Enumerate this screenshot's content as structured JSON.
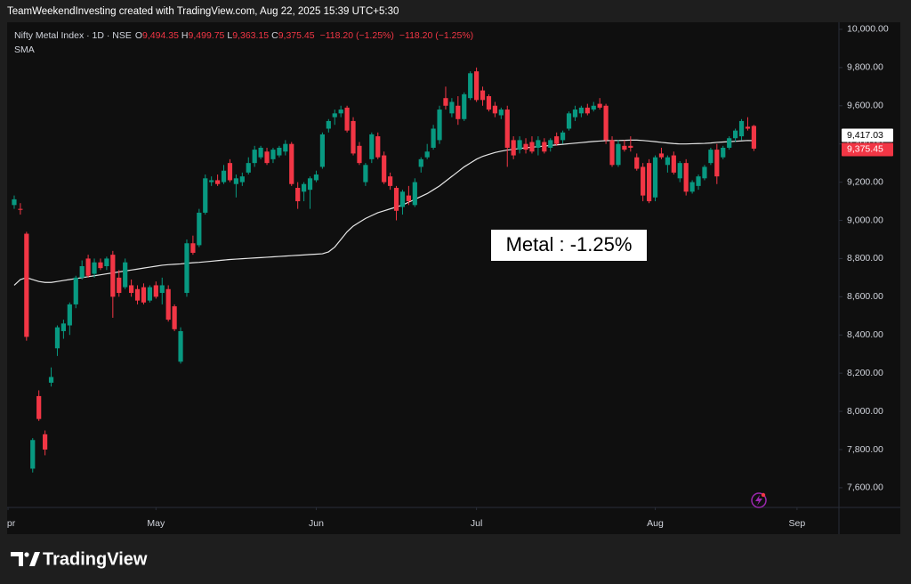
{
  "chart_data": {
    "type": "candlestick",
    "credit": "TeamWeekendInvesting created with TradingView.com, Aug 22, 2025 15:39 UTC+5:30",
    "title": "Nifty Metal Index · 1D · NSE",
    "legend_items": [
      {
        "key": "O",
        "value": "9,494.35"
      },
      {
        "key": "H",
        "value": "9,499.75"
      },
      {
        "key": "L",
        "value": "9,363.15"
      },
      {
        "key": "C",
        "value": "9,375.45"
      }
    ],
    "change_labels": [
      "−118.20 (−1.25%)",
      "−118.20 (−1.25%)"
    ],
    "indicator": "SMA",
    "annotation": "Metal : -1.25%",
    "brand": "TradingView",
    "up_color": "#089981",
    "down_color": "#f23645",
    "sma_color": "#e6e6e6",
    "grid": false,
    "xlim": [
      -1.15,
      133.8
    ],
    "xticks": [
      {
        "value": -1,
        "label": "Apr"
      },
      {
        "value": 23,
        "label": "May"
      },
      {
        "value": 49,
        "label": "Jun"
      },
      {
        "value": 75,
        "label": "Jul"
      },
      {
        "value": 104,
        "label": "Aug"
      },
      {
        "value": 127,
        "label": "Sep"
      }
    ],
    "ylim": [
      7497,
      10037
    ],
    "yticks": [
      {
        "value": 7600,
        "label": "7,600.00"
      },
      {
        "value": 7800,
        "label": "7,800.00"
      },
      {
        "value": 8000,
        "label": "8,000.00"
      },
      {
        "value": 8200,
        "label": "8,200.00"
      },
      {
        "value": 8400,
        "label": "8,400.00"
      },
      {
        "value": 8600,
        "label": "8,600.00"
      },
      {
        "value": 8800,
        "label": "8,800.00"
      },
      {
        "value": 9000,
        "label": "9,000.00"
      },
      {
        "value": 9200,
        "label": "9,200.00"
      },
      {
        "value": 9400,
        "label": "9,400.00"
      },
      {
        "value": 9600,
        "label": "9,600.00"
      },
      {
        "value": 9800,
        "label": "9,800.00"
      },
      {
        "value": 10000,
        "label": "10,000.00"
      }
    ],
    "price_labels": [
      {
        "value": 9417.03,
        "label": "9,417.03"
      },
      {
        "value": 9375.45,
        "label": "9,375.45"
      }
    ],
    "ohlc": [
      [
        9080,
        9130,
        9060,
        9110
      ],
      [
        9060,
        9090,
        9030,
        9055
      ],
      [
        8930,
        8940,
        8370,
        8390
      ],
      [
        7700,
        7860,
        7680,
        7850
      ],
      [
        8080,
        8110,
        7950,
        7960
      ],
      [
        7880,
        7900,
        7770,
        7800
      ],
      [
        8150,
        8230,
        8130,
        8180
      ],
      [
        8330,
        8450,
        8290,
        8440
      ],
      [
        8420,
        8480,
        8380,
        8460
      ],
      [
        8450,
        8570,
        8400,
        8560
      ],
      [
        8560,
        8710,
        8540,
        8700
      ],
      [
        8700,
        8790,
        8690,
        8760
      ],
      [
        8800,
        8820,
        8700,
        8710
      ],
      [
        8720,
        8800,
        8700,
        8780
      ],
      [
        8780,
        8800,
        8740,
        8750
      ],
      [
        8760,
        8810,
        8740,
        8800
      ],
      [
        8820,
        8840,
        8490,
        8600
      ],
      [
        8700,
        8740,
        8600,
        8620
      ],
      [
        8650,
        8800,
        8640,
        8780
      ],
      [
        8660,
        8690,
        8600,
        8620
      ],
      [
        8640,
        8660,
        8560,
        8580
      ],
      [
        8650,
        8670,
        8560,
        8570
      ],
      [
        8580,
        8660,
        8570,
        8650
      ],
      [
        8660,
        8680,
        8590,
        8600
      ],
      [
        8620,
        8700,
        8560,
        8660
      ],
      [
        8640,
        8660,
        8470,
        8480
      ],
      [
        8550,
        8560,
        8420,
        8430
      ],
      [
        8260,
        8440,
        8250,
        8420
      ],
      [
        8620,
        8900,
        8600,
        8880
      ],
      [
        8880,
        8920,
        8820,
        8830
      ],
      [
        8870,
        9060,
        8860,
        9040
      ],
      [
        9040,
        9240,
        9030,
        9220
      ],
      [
        9200,
        9230,
        9180,
        9210
      ],
      [
        9210,
        9240,
        9180,
        9190
      ],
      [
        9200,
        9290,
        9190,
        9260
      ],
      [
        9300,
        9320,
        9200,
        9210
      ],
      [
        9190,
        9240,
        9120,
        9220
      ],
      [
        9200,
        9250,
        9180,
        9230
      ],
      [
        9250,
        9330,
        9240,
        9300
      ],
      [
        9300,
        9390,
        9280,
        9370
      ],
      [
        9330,
        9390,
        9320,
        9380
      ],
      [
        9360,
        9380,
        9290,
        9300
      ],
      [
        9320,
        9380,
        9300,
        9370
      ],
      [
        9340,
        9390,
        9330,
        9380
      ],
      [
        9360,
        9420,
        9340,
        9400
      ],
      [
        9400,
        9410,
        9180,
        9190
      ],
      [
        9170,
        9200,
        9060,
        9100
      ],
      [
        9150,
        9200,
        9100,
        9190
      ],
      [
        9160,
        9230,
        9060,
        9220
      ],
      [
        9210,
        9260,
        9200,
        9240
      ],
      [
        9280,
        9460,
        9270,
        9450
      ],
      [
        9480,
        9530,
        9460,
        9520
      ],
      [
        9540,
        9580,
        9500,
        9560
      ],
      [
        9560,
        9600,
        9540,
        9580
      ],
      [
        9590,
        9600,
        9460,
        9470
      ],
      [
        9520,
        9540,
        9340,
        9350
      ],
      [
        9390,
        9410,
        9290,
        9300
      ],
      [
        9200,
        9300,
        9180,
        9290
      ],
      [
        9320,
        9460,
        9300,
        9450
      ],
      [
        9440,
        9460,
        9320,
        9330
      ],
      [
        9340,
        9360,
        9190,
        9200
      ],
      [
        9230,
        9250,
        9160,
        9180
      ],
      [
        9170,
        9180,
        9000,
        9050
      ],
      [
        9070,
        9160,
        9030,
        9150
      ],
      [
        9130,
        9180,
        9080,
        9100
      ],
      [
        9080,
        9220,
        9070,
        9200
      ],
      [
        9280,
        9330,
        9250,
        9320
      ],
      [
        9330,
        9400,
        9320,
        9360
      ],
      [
        9380,
        9500,
        9370,
        9480
      ],
      [
        9420,
        9600,
        9400,
        9580
      ],
      [
        9640,
        9700,
        9580,
        9600
      ],
      [
        9560,
        9640,
        9540,
        9620
      ],
      [
        9600,
        9650,
        9500,
        9530
      ],
      [
        9530,
        9670,
        9520,
        9660
      ],
      [
        9640,
        9780,
        9630,
        9770
      ],
      [
        9780,
        9800,
        9620,
        9630
      ],
      [
        9680,
        9700,
        9600,
        9630
      ],
      [
        9650,
        9660,
        9570,
        9580
      ],
      [
        9600,
        9620,
        9540,
        9560
      ],
      [
        9550,
        9590,
        9530,
        9580
      ],
      [
        9580,
        9600,
        9280,
        9380
      ],
      [
        9420,
        9440,
        9320,
        9340
      ],
      [
        9370,
        9440,
        9350,
        9420
      ],
      [
        9400,
        9430,
        9350,
        9370
      ],
      [
        9410,
        9440,
        9350,
        9360
      ],
      [
        9380,
        9440,
        9340,
        9420
      ],
      [
        9410,
        9430,
        9350,
        9360
      ],
      [
        9380,
        9430,
        9360,
        9420
      ],
      [
        9440,
        9460,
        9390,
        9400
      ],
      [
        9420,
        9470,
        9400,
        9460
      ],
      [
        9480,
        9570,
        9470,
        9560
      ],
      [
        9540,
        9600,
        9520,
        9580
      ],
      [
        9560,
        9600,
        9540,
        9590
      ],
      [
        9590,
        9610,
        9550,
        9560
      ],
      [
        9580,
        9620,
        9570,
        9600
      ],
      [
        9610,
        9640,
        9580,
        9590
      ],
      [
        9600,
        9610,
        9400,
        9420
      ],
      [
        9420,
        9440,
        9280,
        9290
      ],
      [
        9290,
        9420,
        9280,
        9400
      ],
      [
        9390,
        9420,
        9360,
        9370
      ],
      [
        9390,
        9440,
        9360,
        9380
      ],
      [
        9330,
        9350,
        9260,
        9270
      ],
      [
        9280,
        9300,
        9100,
        9130
      ],
      [
        9300,
        9320,
        9090,
        9100
      ],
      [
        9120,
        9340,
        9100,
        9330
      ],
      [
        9350,
        9380,
        9320,
        9330
      ],
      [
        9290,
        9340,
        9250,
        9330
      ],
      [
        9340,
        9360,
        9240,
        9250
      ],
      [
        9220,
        9310,
        9200,
        9300
      ],
      [
        9300,
        9320,
        9130,
        9150
      ],
      [
        9150,
        9210,
        9140,
        9200
      ],
      [
        9180,
        9240,
        9160,
        9230
      ],
      [
        9220,
        9290,
        9210,
        9280
      ],
      [
        9300,
        9380,
        9290,
        9370
      ],
      [
        9370,
        9400,
        9190,
        9230
      ],
      [
        9330,
        9390,
        9320,
        9380
      ],
      [
        9380,
        9440,
        9370,
        9430
      ],
      [
        9430,
        9480,
        9410,
        9470
      ],
      [
        9440,
        9530,
        9420,
        9520
      ],
      [
        9490,
        9540,
        9470,
        9480
      ],
      [
        9494.35,
        9499.75,
        9363.15,
        9375.45
      ]
    ],
    "sma": [
      8660,
      8690,
      8700,
      8690,
      8680,
      8675,
      8675,
      8680,
      8685,
      8690,
      8695,
      8700,
      8705,
      8710,
      8715,
      8720,
      8725,
      8730,
      8735,
      8740,
      8745,
      8750,
      8755,
      8760,
      8765,
      8768,
      8770,
      8772,
      8775,
      8778,
      8780,
      8783,
      8786,
      8789,
      8792,
      8795,
      8797,
      8799,
      8801,
      8803,
      8805,
      8807,
      8809,
      8811,
      8813,
      8815,
      8817,
      8819,
      8821,
      8823,
      8825,
      8835,
      8860,
      8900,
      8940,
      8970,
      8990,
      9010,
      9025,
      9040,
      9050,
      9060,
      9070,
      9080,
      9095,
      9110,
      9125,
      9140,
      9160,
      9180,
      9205,
      9230,
      9255,
      9280,
      9300,
      9320,
      9335,
      9345,
      9355,
      9362,
      9368,
      9372,
      9376,
      9380,
      9383,
      9386,
      9389,
      9392,
      9395,
      9398,
      9401,
      9404,
      9407,
      9410,
      9413,
      9415,
      9417,
      9418,
      9418,
      9419,
      9420,
      9420,
      9418,
      9415,
      9412,
      9408,
      9405,
      9402,
      9400,
      9400,
      9401,
      9402,
      9403,
      9405,
      9408,
      9410,
      9412,
      9414,
      9416,
      9418,
      9417.03
    ]
  }
}
